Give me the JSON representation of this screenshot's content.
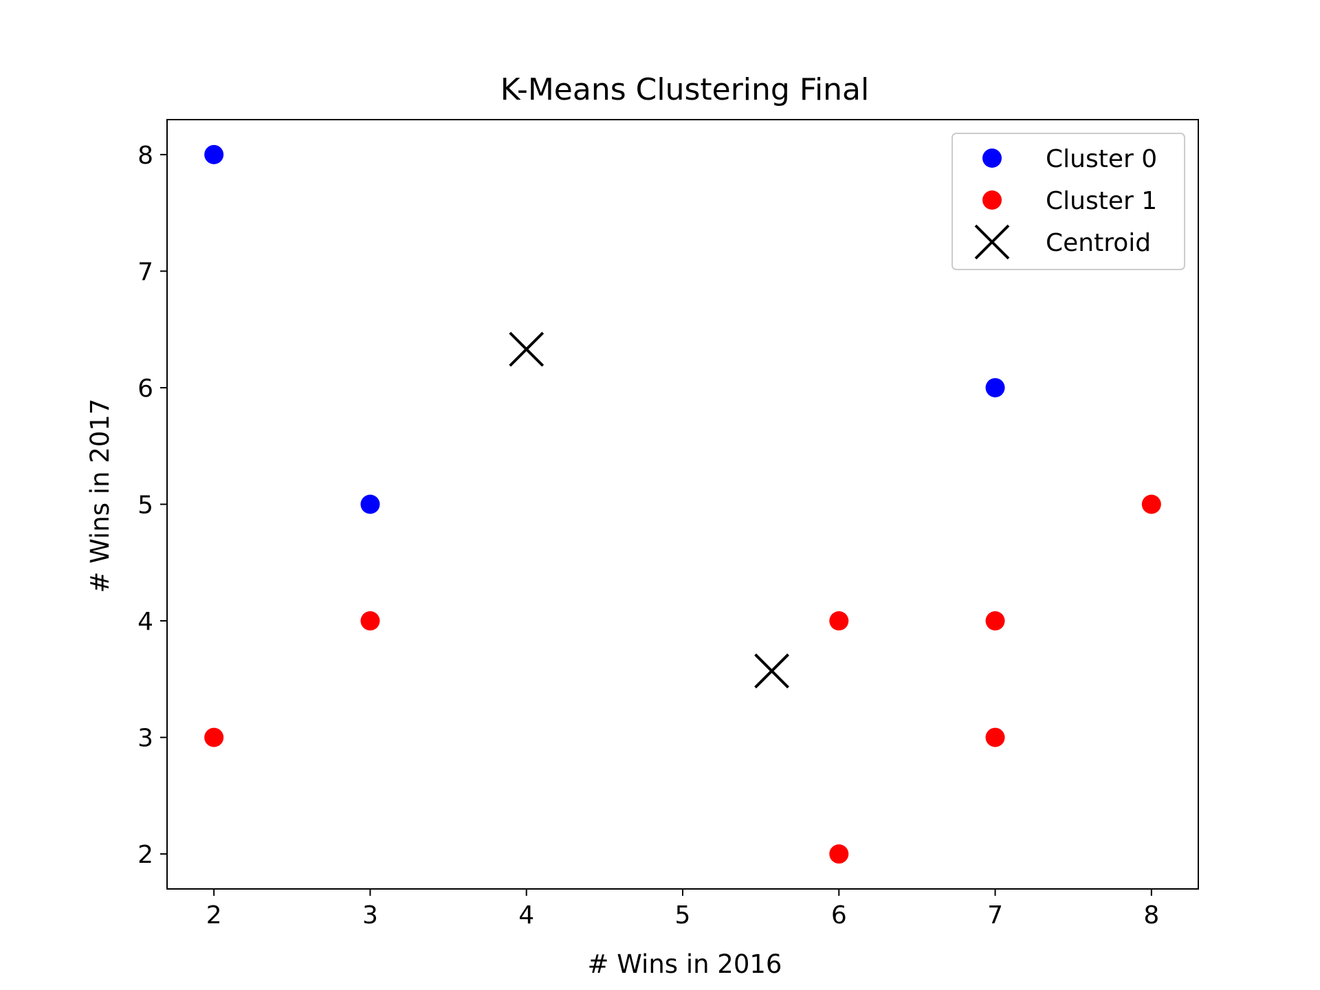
{
  "chart_data": {
    "type": "scatter",
    "title": "K-Means Clustering Final",
    "xlabel": "# Wins in 2016",
    "ylabel": "# Wins in 2017",
    "xlim": [
      1.7,
      8.3
    ],
    "ylim": [
      1.7,
      8.3
    ],
    "xticks": [
      2,
      3,
      4,
      5,
      6,
      7,
      8
    ],
    "yticks": [
      2,
      3,
      4,
      5,
      6,
      7,
      8
    ],
    "grid": false,
    "legend_position": "top-right",
    "series": [
      {
        "name": "Cluster 0",
        "marker": "circle",
        "color": "#0000ff",
        "points": [
          {
            "x": 2,
            "y": 8
          },
          {
            "x": 3,
            "y": 5
          },
          {
            "x": 7,
            "y": 6
          }
        ]
      },
      {
        "name": "Cluster 1",
        "marker": "circle",
        "color": "#ff0000",
        "points": [
          {
            "x": 2,
            "y": 3
          },
          {
            "x": 3,
            "y": 4
          },
          {
            "x": 6,
            "y": 4
          },
          {
            "x": 6,
            "y": 2
          },
          {
            "x": 7,
            "y": 4
          },
          {
            "x": 7,
            "y": 3
          },
          {
            "x": 8,
            "y": 5
          }
        ]
      },
      {
        "name": "Centroid",
        "marker": "x",
        "color": "#000000",
        "points": [
          {
            "x": 4.0,
            "y": 6.33
          },
          {
            "x": 5.57,
            "y": 3.57
          }
        ]
      }
    ]
  }
}
